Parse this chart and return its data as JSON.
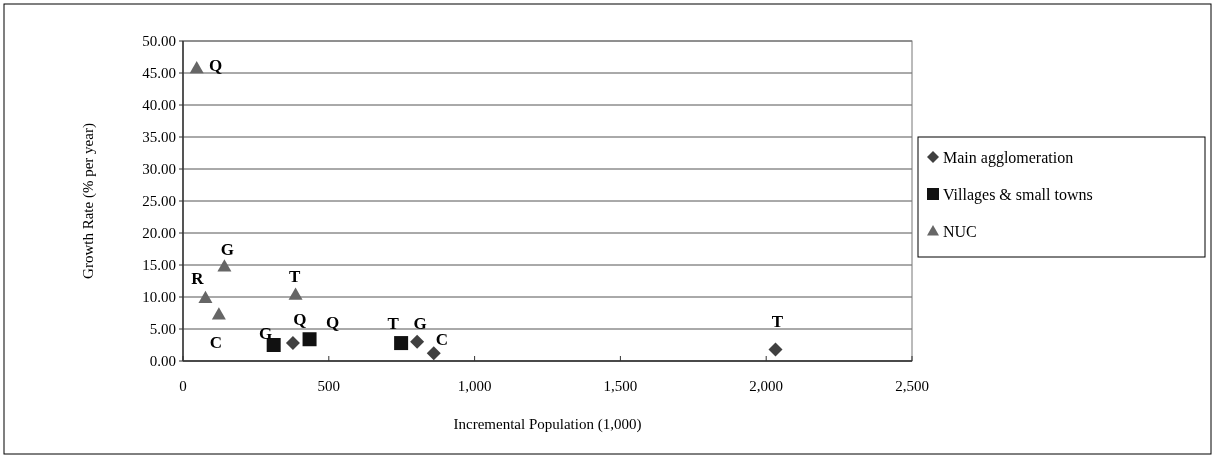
{
  "chart_data": {
    "type": "scatter",
    "xlabel": "Incremental Population (1,000)",
    "ylabel": "Growth Rate (% per year)",
    "xlim": [
      0,
      2500
    ],
    "xticks": [
      0,
      {
        "value": 500,
        "label": "500"
      },
      {
        "value": 1000,
        "label": "1,000"
      },
      {
        "value": 1500,
        "label": "1,500"
      },
      {
        "value": 2000,
        "label": "2,000"
      },
      {
        "value": 2500,
        "label": "2,500"
      }
    ],
    "ylim": [
      0,
      50
    ],
    "yticks": [
      {
        "value": 0,
        "label": "0.00"
      },
      {
        "value": 5,
        "label": "5.00"
      },
      {
        "value": 10,
        "label": "10.00"
      },
      {
        "value": 15,
        "label": "15.00"
      },
      {
        "value": 20,
        "label": "20.00"
      },
      {
        "value": 25,
        "label": "25.00"
      },
      {
        "value": 30,
        "label": "30.00"
      },
      {
        "value": 35,
        "label": "35.00"
      },
      {
        "value": 40,
        "label": "40.00"
      },
      {
        "value": 45,
        "label": "45.00"
      },
      {
        "value": 50,
        "label": "50.00"
      }
    ],
    "grid": "y",
    "legend": "right",
    "series": [
      {
        "name": "Main agglomeration",
        "color": "#404040",
        "marker": "diamond",
        "x": [
          377,
          803,
          860,
          2032
        ],
        "values": [
          2.8,
          3.0,
          1.2,
          1.8
        ]
      },
      {
        "name": "Villages & small towns",
        "color": "#111111",
        "marker": "square",
        "x": [
          311,
          434,
          748
        ],
        "values": [
          2.5,
          3.4,
          2.8
        ]
      },
      {
        "name": "NUC",
        "color": "#666666",
        "marker": "triangle",
        "x": [
          47,
          142,
          77,
          123,
          386
        ],
        "values": [
          45.8,
          14.8,
          9.9,
          7.3,
          10.4
        ]
      }
    ],
    "annotations": [
      {
        "text": "Q",
        "x": 47,
        "y": 45.8
      },
      {
        "text": "G",
        "x": 142,
        "y": 14.8
      },
      {
        "text": "R",
        "x": 77,
        "y": 9.9
      },
      {
        "text": "C",
        "x": 123,
        "y": 7.3
      },
      {
        "text": "T",
        "x": 386,
        "y": 10.4
      },
      {
        "text": "G",
        "x": 311,
        "y": 2.5
      },
      {
        "text": "Q",
        "x": 377,
        "y": 2.8
      },
      {
        "text": "Q",
        "x": 434,
        "y": 3.4
      },
      {
        "text": "T",
        "x": 748,
        "y": 2.8
      },
      {
        "text": "G",
        "x": 803,
        "y": 3.0
      },
      {
        "text": "C",
        "x": 860,
        "y": 1.2
      },
      {
        "text": "T",
        "x": 2032,
        "y": 1.8
      }
    ]
  }
}
